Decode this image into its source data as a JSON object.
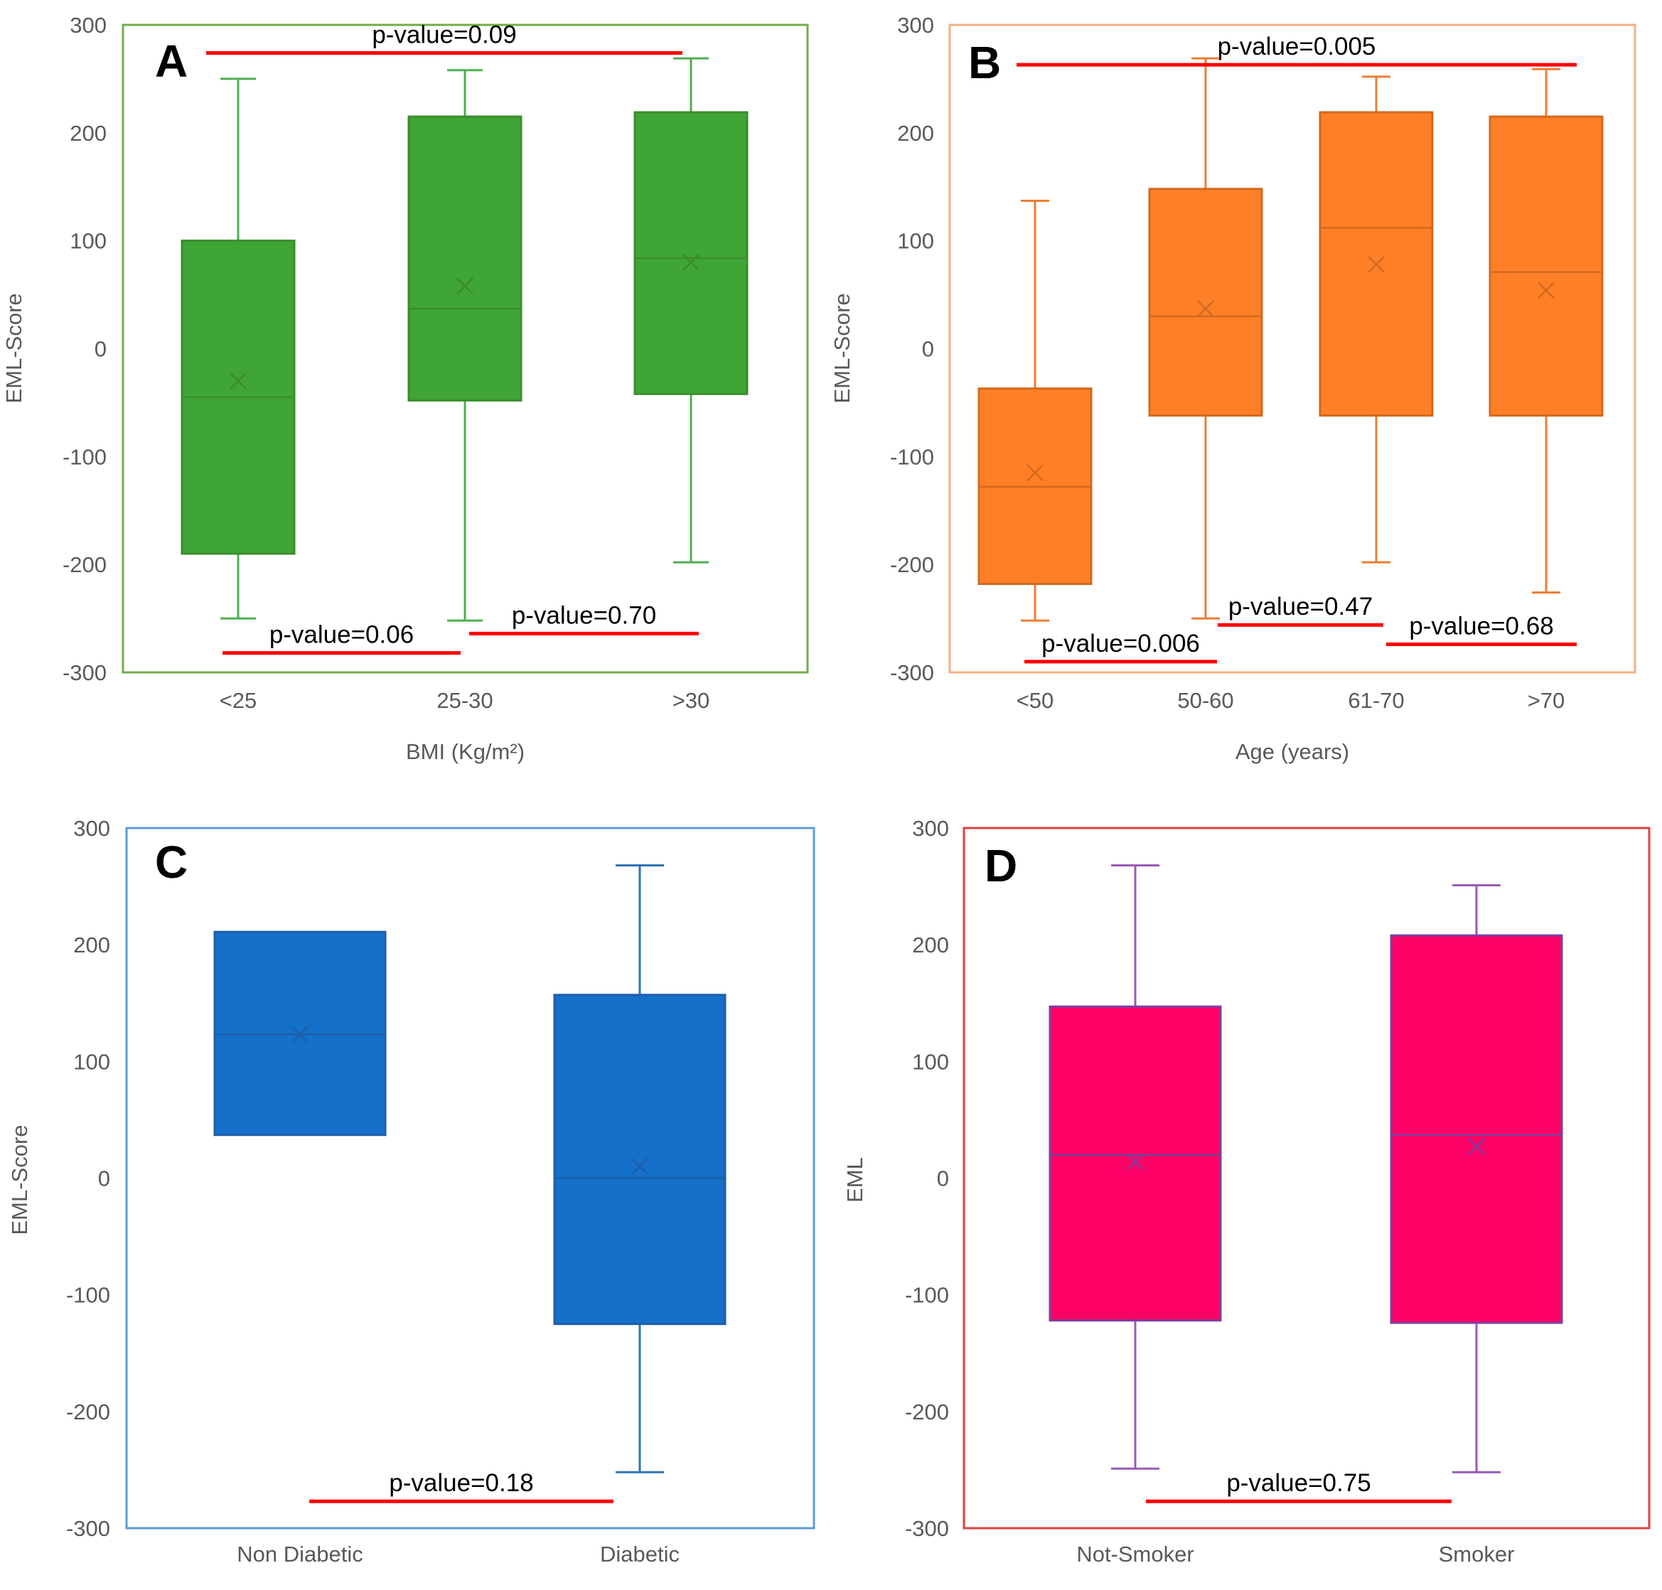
{
  "chart_data": [
    {
      "panel": "A",
      "type": "box",
      "xlabel": "BMI (Kg/m²)",
      "ylabel": "EML-Score",
      "ylim": [
        -300,
        300
      ],
      "yticks": [
        "300",
        "200",
        "100",
        "0",
        "-100",
        "-200",
        "-300"
      ],
      "frame_color": "#70AD47",
      "box_fill": "#3FA535",
      "box_stroke": "#3B8C2C",
      "whisker_color": "#4CAF50",
      "categories": [
        "<25",
        "25-30",
        ">30"
      ],
      "series": [
        {
          "name": "<25",
          "min": -250,
          "q1": -190,
          "median": -45,
          "q3": 100,
          "max": 250,
          "mean": -30
        },
        {
          "name": "25-30",
          "min": -252,
          "q1": -48,
          "median": 37,
          "q3": 215,
          "max": 258,
          "mean": 58
        },
        {
          "name": ">30",
          "min": -198,
          "q1": -42,
          "median": 84,
          "q3": 219,
          "max": 269,
          "mean": 80
        }
      ],
      "annotations": [
        {
          "text": "p-value=0.09",
          "from": 0,
          "to": 2,
          "y": 274,
          "label_pos": "above"
        },
        {
          "text": "p-value=0.06",
          "from": 0,
          "to": 1,
          "y": -282,
          "label_pos": "above"
        },
        {
          "text": "p-value=0.70",
          "from": 1,
          "to": 2,
          "y": -264,
          "label_pos": "above"
        }
      ]
    },
    {
      "panel": "B",
      "type": "box",
      "xlabel": "Age (years)",
      "ylabel": "EML-Score",
      "ylim": [
        -300,
        300
      ],
      "yticks": [
        "300",
        "200",
        "100",
        "0",
        "-100",
        "-200",
        "-300"
      ],
      "frame_color": "#F4B183",
      "box_fill": "#FF7F27",
      "box_stroke": "#D2691E",
      "whisker_color": "#ED7D31",
      "categories": [
        "<50",
        "50-60",
        "61-70",
        ">70"
      ],
      "series": [
        {
          "name": "<50",
          "min": -252,
          "q1": -218,
          "median": -128,
          "q3": -37,
          "max": 137,
          "mean": -115
        },
        {
          "name": "50-60",
          "min": -250,
          "q1": -62,
          "median": 30,
          "q3": 148,
          "max": 269,
          "mean": 37
        },
        {
          "name": "61-70",
          "min": -198,
          "q1": -62,
          "median": 112,
          "q3": 219,
          "max": 252,
          "mean": 78
        },
        {
          "name": ">70",
          "min": -226,
          "q1": -62,
          "median": 71,
          "q3": 215,
          "max": 259,
          "mean": 54
        }
      ],
      "annotations": [
        {
          "text": "p-value=0.005",
          "from": 0,
          "to": 3,
          "y": 263,
          "label_pos": "above"
        },
        {
          "text": "p-value=0.006",
          "from": 0,
          "to": 1,
          "y": -290,
          "label_pos": "above"
        },
        {
          "text": "p-value=0.47",
          "from": 1,
          "to": 2,
          "y": -256,
          "label_pos": "above"
        },
        {
          "text": "p-value=0.68",
          "from": 2,
          "to": 3,
          "y": -274,
          "label_pos": "above"
        }
      ]
    },
    {
      "panel": "C",
      "type": "box",
      "xlabel": "",
      "ylabel": "EML-Score",
      "ylim": [
        -300,
        300
      ],
      "yticks": [
        "300",
        "200",
        "100",
        "0",
        "-100",
        "-200",
        "-300"
      ],
      "frame_color": "#5B9BD5",
      "box_fill": "#1470C8",
      "box_stroke": "#1F5EA8",
      "whisker_color": "#2E75B6",
      "categories": [
        "Non Diabetic",
        "Diabetic"
      ],
      "series": [
        {
          "name": "Non Diabetic",
          "q1": 37,
          "median": 123,
          "q3": 211,
          "mean": 123
        },
        {
          "name": "Diabetic",
          "min": -252,
          "q1": -125,
          "median": 0,
          "q3": 157,
          "max": 268,
          "mean": 10
        }
      ],
      "annotations": [
        {
          "text": "p-value=0.18",
          "from": 0,
          "to": 1,
          "y": -277,
          "label_pos": "above"
        }
      ]
    },
    {
      "panel": "D",
      "type": "box",
      "xlabel": "",
      "ylabel": "EML",
      "ylim": [
        -300,
        300
      ],
      "yticks": [
        "300",
        "200",
        "100",
        "0",
        "-100",
        "-200",
        "-300"
      ],
      "frame_color": "#E0403F",
      "box_fill": "#FF0066",
      "box_stroke": "#7B3FA0",
      "whisker_color": "#9B59B6",
      "categories": [
        "Not-Smoker",
        "Smoker"
      ],
      "series": [
        {
          "name": "Not-Smoker",
          "min": -249,
          "q1": -122,
          "median": 20,
          "q3": 147,
          "max": 268,
          "mean": 14
        },
        {
          "name": "Smoker",
          "min": -252,
          "q1": -124,
          "median": 37,
          "q3": 208,
          "max": 251,
          "mean": 27
        }
      ],
      "annotations": [
        {
          "text": "p-value=0.75",
          "from": 0,
          "to": 1,
          "y": -277,
          "label_pos": "above"
        }
      ]
    }
  ]
}
